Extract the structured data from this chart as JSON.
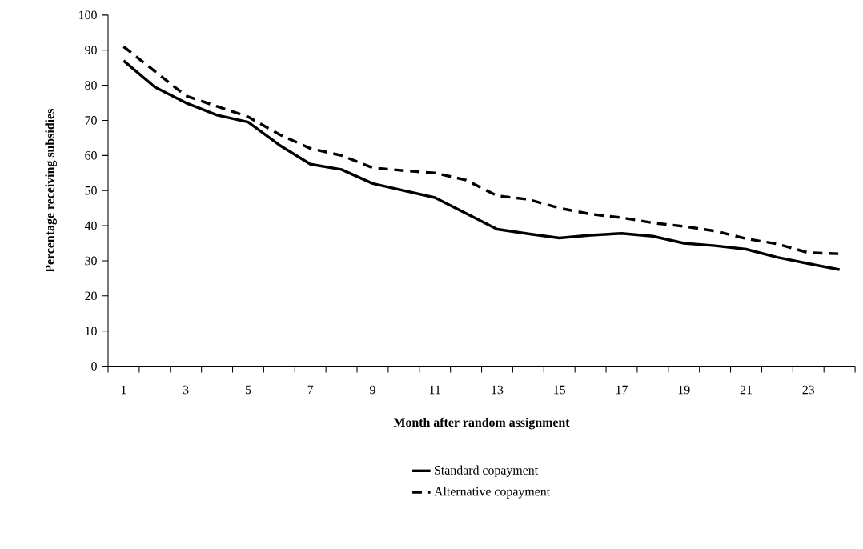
{
  "chart_data": {
    "type": "line",
    "xlabel": "Month after random assignment",
    "ylabel": "Percentage receiving subsidies",
    "categories": [
      "1",
      null,
      "3",
      null,
      "5",
      null,
      "7",
      null,
      "9",
      null,
      "11",
      null,
      "13",
      null,
      "15",
      null,
      "17",
      null,
      "19",
      null,
      "21",
      null,
      "23",
      null
    ],
    "ylim": [
      0,
      100
    ],
    "yticks": [
      0,
      10,
      20,
      30,
      40,
      50,
      60,
      70,
      80,
      90,
      100
    ],
    "grid": false,
    "legend": "bottom",
    "marker": "none",
    "series": [
      {
        "name": "Standard copayment",
        "color": "#000000",
        "line_style": "solid",
        "values": [
          87,
          79.5,
          75,
          71.5,
          69.5,
          63,
          57.5,
          56,
          52,
          50,
          48,
          43.5,
          39,
          37.7,
          36.5,
          37.3,
          37.8,
          37,
          35,
          34.3,
          33.3,
          31,
          29.2,
          27.5
        ]
      },
      {
        "name": "Alternative copayment",
        "color": "#000000",
        "line_style": "dashed",
        "values": [
          91,
          84,
          77,
          74,
          71,
          66,
          62,
          60,
          56.5,
          55.7,
          55,
          53,
          48.5,
          47.5,
          45,
          43.3,
          42.3,
          40.8,
          39.8,
          38.5,
          36.3,
          34.8,
          32.3,
          32
        ]
      }
    ]
  }
}
